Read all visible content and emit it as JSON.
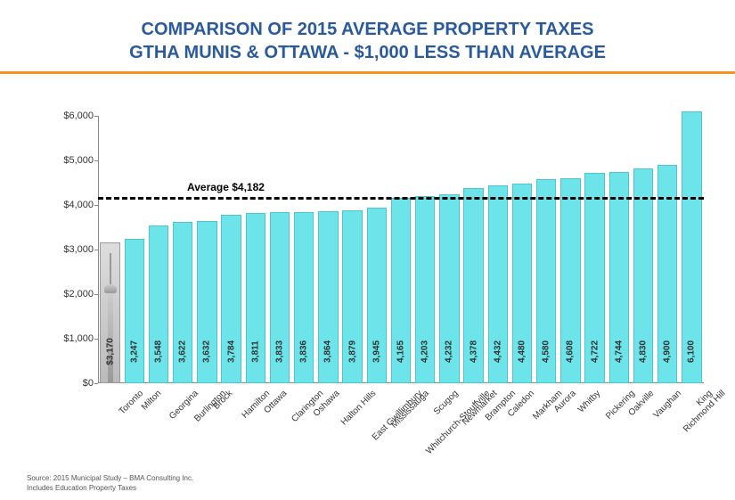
{
  "title_line1": "COMPARISON OF 2015 AVERAGE PROPERTY TAXES",
  "title_line2": "GTHA MUNIS & OTTAWA - $1,000 LESS THAN AVERAGE",
  "chart": {
    "type": "bar",
    "ylim": [
      0,
      6000
    ],
    "ytick_step": 1000,
    "ytick_prefix": "$",
    "ytick_format_comma": true,
    "bar_color": "#6ce4ea",
    "bar_border": "#4cc5cc",
    "first_bar_special": true,
    "background_color": "#ffffff",
    "average_value": 4182,
    "average_label": "Average $4,182",
    "bar_width_ratio": 0.82,
    "categories": [
      "Toronto",
      "Milton",
      "Georgina",
      "Burlington",
      "Brock",
      "Hamilton",
      "Ottawa",
      "Clarington",
      "Oshawa",
      "Halton Hills",
      "East Gwillimbury",
      "Mississauga",
      "Whitchurch-Stouffville",
      "Scugog",
      "Newmarket",
      "Brampton",
      "Caledon",
      "Markham",
      "Aurora",
      "Whitby",
      "Pickering",
      "Oakville",
      "Vaughan",
      "Richmond Hill",
      "King"
    ],
    "value_labels": [
      "$3,170",
      "3,247",
      "3,548",
      "3,622",
      "3,632",
      "3,784",
      "3,811",
      "3,833",
      "3,836",
      "3,864",
      "3,879",
      "3,945",
      "4,165",
      "4,203",
      "4,232",
      "4,378",
      "4,432",
      "4,480",
      "4,580",
      "4,608",
      "4,722",
      "4,744",
      "4,830",
      "4,900",
      "6,100"
    ],
    "values": [
      3170,
      3247,
      3548,
      3622,
      3632,
      3784,
      3811,
      3833,
      3836,
      3864,
      3879,
      3945,
      4165,
      4203,
      4232,
      4378,
      4432,
      4480,
      4580,
      4608,
      4722,
      4744,
      4830,
      4900,
      6100
    ]
  },
  "source_line1": "Source: 2015 Municipal Study – BMA Consulting Inc.",
  "source_line2": "Includes Education Property Taxes"
}
